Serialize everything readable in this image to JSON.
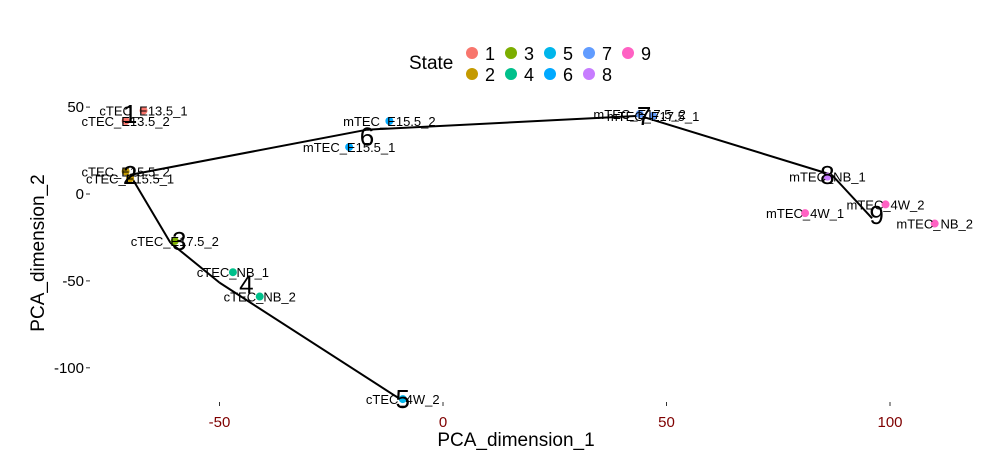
{
  "chart_data": {
    "type": "scatter",
    "xlabel": "PCA_dimension_1",
    "ylabel": "PCA_dimension_2",
    "xlim": [
      -100,
      120
    ],
    "ylim": [
      -118,
      53
    ],
    "xticks": [
      -50,
      0,
      50,
      100
    ],
    "yticks": [
      50,
      0,
      -50,
      -100
    ],
    "xtick_color": "#7f0000",
    "ytick_color": "#000000",
    "grid": false,
    "legend": {
      "title": "State",
      "placement": "top",
      "entries": [
        {
          "label": "1",
          "color": "#f8766d"
        },
        {
          "label": "2",
          "color": "#c49a00"
        },
        {
          "label": "3",
          "color": "#7cae00"
        },
        {
          "label": "4",
          "color": "#00c08b"
        },
        {
          "label": "5",
          "color": "#00b6eb"
        },
        {
          "label": "6",
          "color": "#00a9ff"
        },
        {
          "label": "7",
          "color": "#619cff"
        },
        {
          "label": "8",
          "color": "#c77cff"
        },
        {
          "label": "9",
          "color": "#ff61c3"
        }
      ],
      "layout_rows": [
        [
          "1",
          "3",
          "5",
          "7",
          "9"
        ],
        [
          "2",
          "4",
          "6",
          "8"
        ]
      ]
    },
    "points": [
      {
        "label": "cTEC_E13.5_1",
        "display": "cTEC_E13.5_1",
        "x": -67,
        "y": 48,
        "state": "1"
      },
      {
        "label": "cTEC_E13.5_2",
        "display": "cTEC_E13.5_2",
        "x": -71,
        "y": 42,
        "state": "1"
      },
      {
        "label": "cTEC_E15.5_2",
        "display": "cTEC_E15.5_2",
        "x": -71,
        "y": 13,
        "state": "2"
      },
      {
        "label": "cTEC_E15.5_1",
        "display": "cTEC_E15.5_1",
        "x": -70,
        "y": 9,
        "state": "2"
      },
      {
        "label": "cTEC_E17.5_2",
        "display": "cTEC_E17.5_2",
        "x": -60,
        "y": -27,
        "state": "3"
      },
      {
        "label": "cTEC_NB_1",
        "display": "cTEC_NB_1",
        "x": -47,
        "y": -45,
        "state": "4"
      },
      {
        "label": "cTEC_NB_2",
        "display": "cTEC_NB_2",
        "x": -41,
        "y": -59,
        "state": "4"
      },
      {
        "label": "cTEC_4W_2",
        "display": "cTEC_4W_2",
        "x": -9,
        "y": -118,
        "state": "5"
      },
      {
        "label": "mTEC_E15.5_2",
        "display": "mTEC_E15.5_2",
        "x": -12,
        "y": 42,
        "state": "6"
      },
      {
        "label": "mTEC_E15.5_1",
        "display": "mTEC_E15.5_1",
        "x": -21,
        "y": 27,
        "state": "6"
      },
      {
        "label": "mTEC_E17.5_2",
        "display": "mTEC_E17.5_2",
        "x": 44,
        "y": 46,
        "state": "7"
      },
      {
        "label": "mTEC_E17.5_1",
        "display": "mTEC_E17.5_1",
        "x": 47,
        "y": 45,
        "state": "7"
      },
      {
        "label": "mTEC_NB_1",
        "display": "mTEC_NB_1",
        "x": 86,
        "y": 10,
        "state": "8"
      },
      {
        "label": "mTEC_4W_2",
        "display": "mTEC_4W_2",
        "x": 99,
        "y": -6,
        "state": "9"
      },
      {
        "label": "mTEC_4W_1",
        "display": "mTEC_4W_1",
        "x": 81,
        "y": -11,
        "state": "9"
      },
      {
        "label": "mTEC_NB_2",
        "display": "mTEC_NB_2",
        "x": 110,
        "y": -17,
        "state": "9"
      }
    ],
    "trajectory": {
      "x": [
        -70,
        -61,
        -50,
        -9,
        -70,
        -17,
        44,
        87,
        96
      ],
      "y": [
        11,
        -28,
        -51,
        -119,
        11,
        37,
        45,
        11,
        -14
      ]
    },
    "trajectory_segments": [
      [
        0,
        1
      ],
      [
        1,
        2
      ],
      [
        2,
        3
      ],
      [
        0,
        5
      ],
      [
        5,
        6
      ],
      [
        6,
        7
      ],
      [
        7,
        8
      ]
    ],
    "state_labels": [
      {
        "label": "1",
        "x": -70,
        "y": 46
      },
      {
        "label": "2",
        "x": -70,
        "y": 11
      },
      {
        "label": "3",
        "x": -59,
        "y": -27
      },
      {
        "label": "4",
        "x": -44,
        "y": -52
      },
      {
        "label": "5",
        "x": -9,
        "y": -118
      },
      {
        "label": "6",
        "x": -17,
        "y": 33
      },
      {
        "label": "7",
        "x": 45,
        "y": 45
      },
      {
        "label": "8",
        "x": 86,
        "y": 11
      },
      {
        "label": "9",
        "x": 97,
        "y": -12
      }
    ]
  }
}
